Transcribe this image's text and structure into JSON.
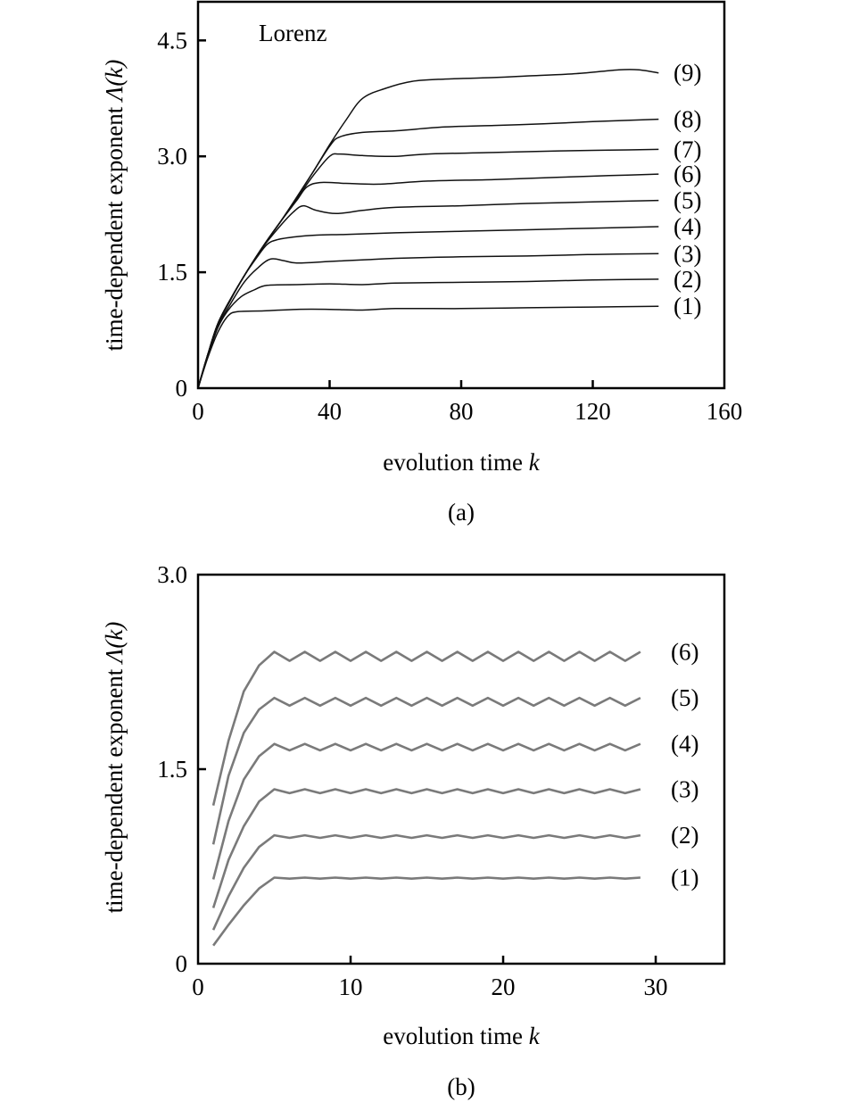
{
  "chart_data": [
    {
      "id": "a",
      "type": "line",
      "title": "",
      "annotation": "Lorenz",
      "caption": "(a)",
      "xlabel": "evolution time k",
      "xlabel_text": "evolution time ",
      "xlabel_var": "k",
      "ylabel": "time-dependent exponent Λ(k)",
      "ylabel_text": "time-dependent exponent ",
      "ylabel_var": "Λ(k)",
      "xlim": [
        0,
        160
      ],
      "ylim": [
        0,
        5.0
      ],
      "xticks": [
        0,
        40,
        80,
        120,
        160
      ],
      "xtick_labels": [
        "0",
        "40",
        "80",
        "120",
        "160"
      ],
      "yticks": [
        0,
        1.5,
        3.0,
        4.5
      ],
      "ytick_labels": [
        "0",
        "1.5",
        "3.0",
        "4.5"
      ],
      "grid": false,
      "legend": "inline labels at right end of each curve",
      "line_color": "#111111",
      "series": [
        {
          "name": "(1)",
          "points": [
            [
              0,
              0
            ],
            [
              3,
              0.4
            ],
            [
              6,
              0.72
            ],
            [
              9,
              0.93
            ],
            [
              12,
              0.99
            ],
            [
              20,
              1.0
            ],
            [
              30,
              1.02
            ],
            [
              40,
              1.02
            ],
            [
              50,
              1.01
            ],
            [
              60,
              1.03
            ],
            [
              80,
              1.03
            ],
            [
              100,
              1.04
            ],
            [
              120,
              1.05
            ],
            [
              140,
              1.06
            ]
          ]
        },
        {
          "name": "(2)",
          "points": [
            [
              0,
              0
            ],
            [
              3,
              0.42
            ],
            [
              6,
              0.78
            ],
            [
              9,
              1.0
            ],
            [
              13,
              1.18
            ],
            [
              17,
              1.27
            ],
            [
              21,
              1.33
            ],
            [
              30,
              1.34
            ],
            [
              40,
              1.35
            ],
            [
              50,
              1.34
            ],
            [
              60,
              1.36
            ],
            [
              80,
              1.37
            ],
            [
              100,
              1.38
            ],
            [
              120,
              1.4
            ],
            [
              140,
              1.41
            ]
          ]
        },
        {
          "name": "(3)",
          "points": [
            [
              0,
              0
            ],
            [
              3,
              0.43
            ],
            [
              6,
              0.8
            ],
            [
              10,
              1.1
            ],
            [
              14,
              1.37
            ],
            [
              18,
              1.55
            ],
            [
              22,
              1.67
            ],
            [
              26,
              1.65
            ],
            [
              30,
              1.62
            ],
            [
              40,
              1.64
            ],
            [
              50,
              1.66
            ],
            [
              60,
              1.68
            ],
            [
              80,
              1.7
            ],
            [
              100,
              1.71
            ],
            [
              120,
              1.73
            ],
            [
              140,
              1.74
            ]
          ]
        },
        {
          "name": "(4)",
          "points": [
            [
              0,
              0
            ],
            [
              3,
              0.44
            ],
            [
              6,
              0.82
            ],
            [
              10,
              1.15
            ],
            [
              14,
              1.45
            ],
            [
              18,
              1.7
            ],
            [
              21,
              1.86
            ],
            [
              24,
              1.92
            ],
            [
              30,
              1.96
            ],
            [
              36,
              1.98
            ],
            [
              45,
              1.99
            ],
            [
              60,
              2.01
            ],
            [
              80,
              2.03
            ],
            [
              100,
              2.05
            ],
            [
              120,
              2.07
            ],
            [
              140,
              2.09
            ]
          ]
        },
        {
          "name": "(5)",
          "points": [
            [
              0,
              0
            ],
            [
              3,
              0.44
            ],
            [
              6,
              0.83
            ],
            [
              10,
              1.16
            ],
            [
              15,
              1.52
            ],
            [
              20,
              1.84
            ],
            [
              25,
              2.1
            ],
            [
              29,
              2.28
            ],
            [
              32,
              2.36
            ],
            [
              36,
              2.3
            ],
            [
              42,
              2.26
            ],
            [
              50,
              2.3
            ],
            [
              60,
              2.34
            ],
            [
              80,
              2.36
            ],
            [
              100,
              2.39
            ],
            [
              120,
              2.41
            ],
            [
              140,
              2.43
            ]
          ]
        },
        {
          "name": "(6)",
          "points": [
            [
              0,
              0
            ],
            [
              3,
              0.44
            ],
            [
              6,
              0.83
            ],
            [
              10,
              1.16
            ],
            [
              15,
              1.52
            ],
            [
              20,
              1.85
            ],
            [
              25,
              2.15
            ],
            [
              30,
              2.43
            ],
            [
              33,
              2.6
            ],
            [
              37,
              2.66
            ],
            [
              45,
              2.65
            ],
            [
              55,
              2.64
            ],
            [
              70,
              2.68
            ],
            [
              90,
              2.7
            ],
            [
              110,
              2.73
            ],
            [
              125,
              2.75
            ],
            [
              140,
              2.77
            ]
          ]
        },
        {
          "name": "(7)",
          "points": [
            [
              0,
              0
            ],
            [
              3,
              0.44
            ],
            [
              6,
              0.83
            ],
            [
              10,
              1.16
            ],
            [
              15,
              1.52
            ],
            [
              20,
              1.85
            ],
            [
              25,
              2.15
            ],
            [
              30,
              2.45
            ],
            [
              35,
              2.75
            ],
            [
              40,
              3.0
            ],
            [
              43,
              3.03
            ],
            [
              50,
              3.01
            ],
            [
              60,
              3.0
            ],
            [
              70,
              3.03
            ],
            [
              90,
              3.05
            ],
            [
              110,
              3.07
            ],
            [
              125,
              3.08
            ],
            [
              140,
              3.09
            ]
          ]
        },
        {
          "name": "(8)",
          "points": [
            [
              0,
              0
            ],
            [
              3,
              0.44
            ],
            [
              6,
              0.83
            ],
            [
              10,
              1.16
            ],
            [
              15,
              1.52
            ],
            [
              20,
              1.85
            ],
            [
              25,
              2.15
            ],
            [
              30,
              2.47
            ],
            [
              35,
              2.8
            ],
            [
              40,
              3.13
            ],
            [
              43,
              3.25
            ],
            [
              50,
              3.31
            ],
            [
              60,
              3.33
            ],
            [
              75,
              3.38
            ],
            [
              90,
              3.4
            ],
            [
              105,
              3.42
            ],
            [
              120,
              3.45
            ],
            [
              140,
              3.48
            ]
          ]
        },
        {
          "name": "(9)",
          "points": [
            [
              0,
              0
            ],
            [
              3,
              0.44
            ],
            [
              6,
              0.83
            ],
            [
              10,
              1.16
            ],
            [
              15,
              1.52
            ],
            [
              20,
              1.85
            ],
            [
              25,
              2.15
            ],
            [
              30,
              2.47
            ],
            [
              35,
              2.8
            ],
            [
              40,
              3.15
            ],
            [
              45,
              3.47
            ],
            [
              50,
              3.75
            ],
            [
              57,
              3.88
            ],
            [
              65,
              3.97
            ],
            [
              75,
              4.0
            ],
            [
              90,
              4.02
            ],
            [
              100,
              4.04
            ],
            [
              115,
              4.07
            ],
            [
              128,
              4.12
            ],
            [
              134,
              4.12
            ],
            [
              140,
              4.08
            ]
          ]
        }
      ]
    },
    {
      "id": "b",
      "type": "line",
      "title": "",
      "caption": "(b)",
      "xlabel": "evolution time k",
      "xlabel_text": "evolution time ",
      "xlabel_var": "k",
      "ylabel": "time-dependent exponent Λ(k)",
      "ylabel_text": "time-dependent exponent ",
      "ylabel_var": "Λ(k)",
      "xlim": [
        0,
        34.5
      ],
      "ylim": [
        0,
        3.0
      ],
      "xticks": [
        0,
        10,
        20,
        30
      ],
      "xtick_labels": [
        "0",
        "10",
        "20",
        "30"
      ],
      "yticks": [
        0,
        1.5,
        3.0
      ],
      "ytick_labels": [
        "0",
        "1.5",
        "3.0"
      ],
      "grid": false,
      "legend": "inline labels at right end of each curve",
      "line_color": "#7a7a7a",
      "ripple_period": 2,
      "series": [
        {
          "name": "(1)",
          "start": [
            1,
            0.14
          ],
          "rise": [
            [
              2,
              0.3
            ],
            [
              3,
              0.45
            ],
            [
              4,
              0.58
            ]
          ],
          "plateau": 0.66,
          "peak_k": 5,
          "amplitude": 0.004,
          "end_k": 29.8
        },
        {
          "name": "(2)",
          "start": [
            1,
            0.26
          ],
          "rise": [
            [
              2,
              0.52
            ],
            [
              3,
              0.74
            ],
            [
              4,
              0.9
            ]
          ],
          "plateau": 0.98,
          "peak_k": 5,
          "amplitude": 0.01,
          "end_k": 29.8
        },
        {
          "name": "(3)",
          "start": [
            1,
            0.43
          ],
          "rise": [
            [
              2,
              0.8
            ],
            [
              3,
              1.06
            ],
            [
              4,
              1.25
            ]
          ],
          "plateau": 1.33,
          "peak_k": 5,
          "amplitude": 0.015,
          "end_k": 29.8
        },
        {
          "name": "(4)",
          "start": [
            1,
            0.65
          ],
          "rise": [
            [
              2,
              1.1
            ],
            [
              3,
              1.42
            ],
            [
              4,
              1.6
            ]
          ],
          "plateau": 1.67,
          "peak_k": 5,
          "amplitude": 0.025,
          "end_k": 29.8
        },
        {
          "name": "(5)",
          "start": [
            1,
            0.92
          ],
          "rise": [
            [
              2,
              1.45
            ],
            [
              3,
              1.78
            ],
            [
              4,
              1.96
            ]
          ],
          "plateau": 2.02,
          "peak_k": 5,
          "amplitude": 0.03,
          "end_k": 29.8
        },
        {
          "name": "(6)",
          "start": [
            1,
            1.22
          ],
          "rise": [
            [
              2,
              1.72
            ],
            [
              3,
              2.1
            ],
            [
              4,
              2.3
            ]
          ],
          "plateau": 2.37,
          "peak_k": 5,
          "amplitude": 0.035,
          "end_k": 29.8
        }
      ]
    }
  ],
  "panel_a": {
    "annotation": "Lorenz",
    "caption": "(a)",
    "xlabel_text": "evolution time ",
    "xlabel_var": "k",
    "ylabel_text": "time-dependent exponent ",
    "ylabel_var": "Λ(k)"
  },
  "panel_b": {
    "caption": "(b)",
    "xlabel_text": "evolution time ",
    "xlabel_var": "k",
    "ylabel_text": "time-dependent exponent ",
    "ylabel_var": "Λ(k)"
  }
}
